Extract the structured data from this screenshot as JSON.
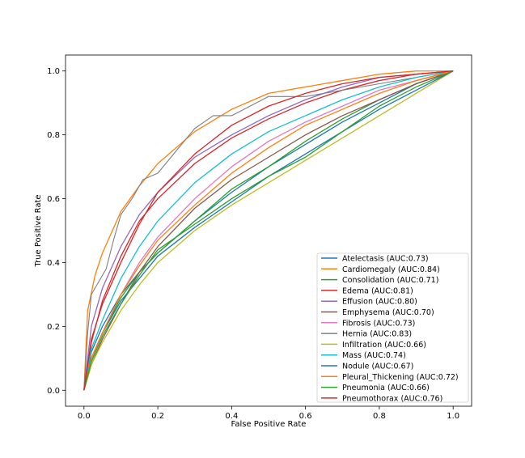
{
  "chart_data": {
    "type": "line",
    "title": "",
    "xlabel": "False Positive Rate",
    "ylabel": "True Positive Rate",
    "xlim": [
      -0.05,
      1.05
    ],
    "ylim": [
      -0.05,
      1.05
    ],
    "xticks": [
      0.0,
      0.2,
      0.4,
      0.6,
      0.8,
      1.0
    ],
    "yticks": [
      0.0,
      0.2,
      0.4,
      0.6,
      0.8,
      1.0
    ],
    "xtick_labels": [
      "0.0",
      "0.2",
      "0.4",
      "0.6",
      "0.8",
      "1.0"
    ],
    "ytick_labels": [
      "0.0",
      "0.2",
      "0.4",
      "0.6",
      "0.8",
      "1.0"
    ],
    "grid": false,
    "legend_position": "lower-right",
    "series": [
      {
        "name": "Atelectasis",
        "label": "Atelectasis (AUC:0.73)",
        "color": "#1f77b4",
        "auc": 0.73,
        "x": [
          0,
          0.02,
          0.05,
          0.1,
          0.15,
          0.2,
          0.3,
          0.4,
          0.5,
          0.6,
          0.7,
          0.8,
          0.9,
          1.0
        ],
        "y": [
          0,
          0.12,
          0.2,
          0.3,
          0.37,
          0.43,
          0.53,
          0.62,
          0.7,
          0.77,
          0.84,
          0.9,
          0.96,
          1.0
        ]
      },
      {
        "name": "Cardiomegaly",
        "label": "Cardiomegaly (AUC:0.84)",
        "color": "#ff7f0e",
        "auc": 0.84,
        "x": [
          0,
          0.01,
          0.03,
          0.05,
          0.1,
          0.15,
          0.2,
          0.3,
          0.4,
          0.5,
          0.6,
          0.7,
          0.8,
          0.9,
          1.0
        ],
        "y": [
          0,
          0.25,
          0.36,
          0.43,
          0.56,
          0.64,
          0.71,
          0.81,
          0.88,
          0.93,
          0.95,
          0.97,
          0.99,
          1.0,
          1.0
        ]
      },
      {
        "name": "Consolidation",
        "label": "Consolidation (AUC:0.71)",
        "color": "#2ca02c",
        "auc": 0.71,
        "x": [
          0,
          0.02,
          0.05,
          0.1,
          0.15,
          0.2,
          0.3,
          0.4,
          0.5,
          0.6,
          0.7,
          0.8,
          0.9,
          1.0
        ],
        "y": [
          0,
          0.1,
          0.18,
          0.29,
          0.37,
          0.43,
          0.53,
          0.63,
          0.7,
          0.78,
          0.85,
          0.91,
          0.96,
          1.0
        ]
      },
      {
        "name": "Edema",
        "label": "Edema (AUC:0.81)",
        "color": "#d62728",
        "auc": 0.81,
        "x": [
          0,
          0.02,
          0.05,
          0.1,
          0.15,
          0.2,
          0.3,
          0.4,
          0.5,
          0.6,
          0.7,
          0.8,
          0.9,
          1.0
        ],
        "y": [
          0,
          0.15,
          0.28,
          0.42,
          0.53,
          0.6,
          0.71,
          0.79,
          0.85,
          0.9,
          0.94,
          0.97,
          0.99,
          1.0
        ]
      },
      {
        "name": "Effusion",
        "label": "Effusion (AUC:0.80)",
        "color": "#9467bd",
        "auc": 0.8,
        "x": [
          0,
          0.02,
          0.05,
          0.1,
          0.15,
          0.2,
          0.3,
          0.4,
          0.5,
          0.6,
          0.7,
          0.8,
          0.9,
          1.0
        ],
        "y": [
          0,
          0.2,
          0.32,
          0.45,
          0.55,
          0.62,
          0.73,
          0.8,
          0.86,
          0.91,
          0.95,
          0.98,
          0.99,
          1.0
        ]
      },
      {
        "name": "Emphysema",
        "label": "Emphysema (AUC:0.70)",
        "color": "#8c564b",
        "auc": 0.7,
        "x": [
          0,
          0.02,
          0.05,
          0.1,
          0.15,
          0.2,
          0.3,
          0.4,
          0.5,
          0.6,
          0.7,
          0.8,
          0.9,
          1.0
        ],
        "y": [
          0,
          0.08,
          0.16,
          0.27,
          0.37,
          0.45,
          0.57,
          0.66,
          0.73,
          0.8,
          0.86,
          0.91,
          0.96,
          1.0
        ]
      },
      {
        "name": "Fibrosis",
        "label": "Fibrosis (AUC:0.73)",
        "color": "#e377c2",
        "auc": 0.73,
        "x": [
          0,
          0.02,
          0.05,
          0.1,
          0.15,
          0.2,
          0.3,
          0.4,
          0.5,
          0.6,
          0.7,
          0.8,
          0.9,
          1.0
        ],
        "y": [
          0,
          0.1,
          0.18,
          0.3,
          0.4,
          0.48,
          0.6,
          0.7,
          0.78,
          0.84,
          0.89,
          0.94,
          0.97,
          1.0
        ]
      },
      {
        "name": "Hernia",
        "label": "Hernia (AUC:0.83)",
        "color": "#7f7f7f",
        "auc": 0.83,
        "x": [
          0,
          0.01,
          0.02,
          0.04,
          0.06,
          0.08,
          0.1,
          0.13,
          0.16,
          0.2,
          0.25,
          0.3,
          0.35,
          0.4,
          0.45,
          0.5,
          0.6,
          0.7,
          0.8,
          0.9,
          1.0
        ],
        "y": [
          0,
          0.18,
          0.3,
          0.34,
          0.38,
          0.47,
          0.55,
          0.6,
          0.66,
          0.68,
          0.75,
          0.82,
          0.86,
          0.86,
          0.89,
          0.92,
          0.92,
          0.94,
          0.96,
          0.98,
          1.0
        ]
      },
      {
        "name": "Infiltration",
        "label": "Infiltration (AUC:0.66)",
        "color": "#bcbd22",
        "auc": 0.66,
        "x": [
          0,
          0.02,
          0.05,
          0.1,
          0.15,
          0.2,
          0.3,
          0.4,
          0.5,
          0.6,
          0.7,
          0.8,
          0.9,
          1.0
        ],
        "y": [
          0,
          0.08,
          0.15,
          0.25,
          0.33,
          0.4,
          0.5,
          0.58,
          0.65,
          0.72,
          0.79,
          0.86,
          0.93,
          1.0
        ]
      },
      {
        "name": "Mass",
        "label": "Mass (AUC:0.74)",
        "color": "#17becf",
        "auc": 0.74,
        "x": [
          0,
          0.02,
          0.05,
          0.1,
          0.15,
          0.2,
          0.3,
          0.4,
          0.5,
          0.6,
          0.7,
          0.8,
          0.9,
          1.0
        ],
        "y": [
          0,
          0.13,
          0.22,
          0.35,
          0.45,
          0.53,
          0.65,
          0.74,
          0.81,
          0.86,
          0.91,
          0.95,
          0.98,
          1.0
        ]
      },
      {
        "name": "Nodule",
        "label": "Nodule (AUC:0.67)",
        "color": "#1f77b4",
        "auc": 0.67,
        "x": [
          0,
          0.02,
          0.05,
          0.1,
          0.15,
          0.2,
          0.3,
          0.4,
          0.5,
          0.6,
          0.7,
          0.8,
          0.9,
          1.0
        ],
        "y": [
          0,
          0.1,
          0.18,
          0.28,
          0.35,
          0.42,
          0.51,
          0.59,
          0.67,
          0.74,
          0.81,
          0.88,
          0.94,
          1.0
        ]
      },
      {
        "name": "Pleural_Thickening",
        "label": "Pleural_Thickening (AUC:0.72)",
        "color": "#ff7f0e",
        "auc": 0.72,
        "x": [
          0,
          0.02,
          0.05,
          0.1,
          0.15,
          0.2,
          0.3,
          0.4,
          0.5,
          0.6,
          0.7,
          0.8,
          0.9,
          1.0
        ],
        "y": [
          0,
          0.1,
          0.18,
          0.3,
          0.39,
          0.47,
          0.58,
          0.68,
          0.76,
          0.83,
          0.88,
          0.93,
          0.97,
          1.0
        ]
      },
      {
        "name": "Pneumonia",
        "label": "Pneumonia (AUC:0.66)",
        "color": "#2ca02c",
        "auc": 0.66,
        "x": [
          0,
          0.02,
          0.05,
          0.1,
          0.15,
          0.2,
          0.3,
          0.4,
          0.5,
          0.6,
          0.7,
          0.8,
          0.9,
          1.0
        ],
        "y": [
          0,
          0.09,
          0.17,
          0.27,
          0.36,
          0.44,
          0.52,
          0.6,
          0.67,
          0.73,
          0.81,
          0.89,
          0.95,
          1.0
        ]
      },
      {
        "name": "Pneumothorax",
        "label": "Pneumothorax (AUC:0.76)",
        "color": "#d62728",
        "auc": 0.76,
        "x": [
          0,
          0.02,
          0.05,
          0.1,
          0.15,
          0.2,
          0.3,
          0.4,
          0.5,
          0.6,
          0.7,
          0.8,
          0.9,
          1.0
        ],
        "y": [
          0,
          0.16,
          0.27,
          0.4,
          0.52,
          0.62,
          0.74,
          0.83,
          0.89,
          0.93,
          0.96,
          0.98,
          0.99,
          1.0
        ]
      }
    ]
  }
}
